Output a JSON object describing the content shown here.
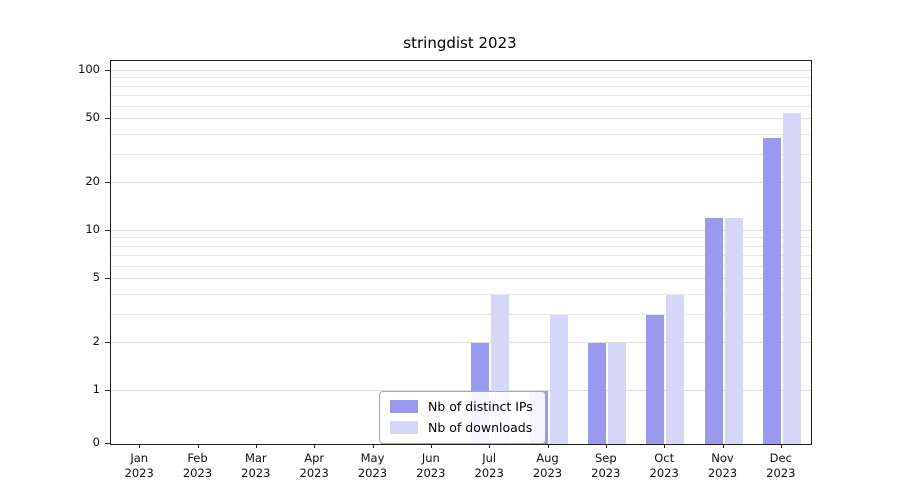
{
  "chart_data": {
    "type": "bar",
    "title": "stringdist 2023",
    "categories": [
      "Jan 2023",
      "Feb 2023",
      "Mar 2023",
      "Apr 2023",
      "May 2023",
      "Jun 2023",
      "Jul 2023",
      "Aug 2023",
      "Sep 2023",
      "Oct 2023",
      "Nov 2023",
      "Dec 2023"
    ],
    "series": [
      {
        "name": "Nb of distinct IPs",
        "color": "#9999ed",
        "values": [
          0,
          0,
          0,
          0,
          0,
          0,
          2,
          1,
          2,
          3,
          12,
          38
        ]
      },
      {
        "name": "Nb of downloads",
        "color": "#d6d6f9",
        "values": [
          0,
          0,
          0,
          0,
          0,
          0,
          4,
          3,
          2,
          4,
          12,
          55
        ]
      }
    ],
    "yticks": [
      0,
      1,
      2,
      5,
      10,
      20,
      50,
      100
    ],
    "ylim": [
      0,
      100
    ],
    "scale": "log-with-zero-baseline",
    "grid": "horizontal",
    "legend_position": "bottom-center",
    "colors": {
      "background": "#ffffff",
      "gridline": "#e6e6e6",
      "axis": "#1f1f1f"
    }
  }
}
